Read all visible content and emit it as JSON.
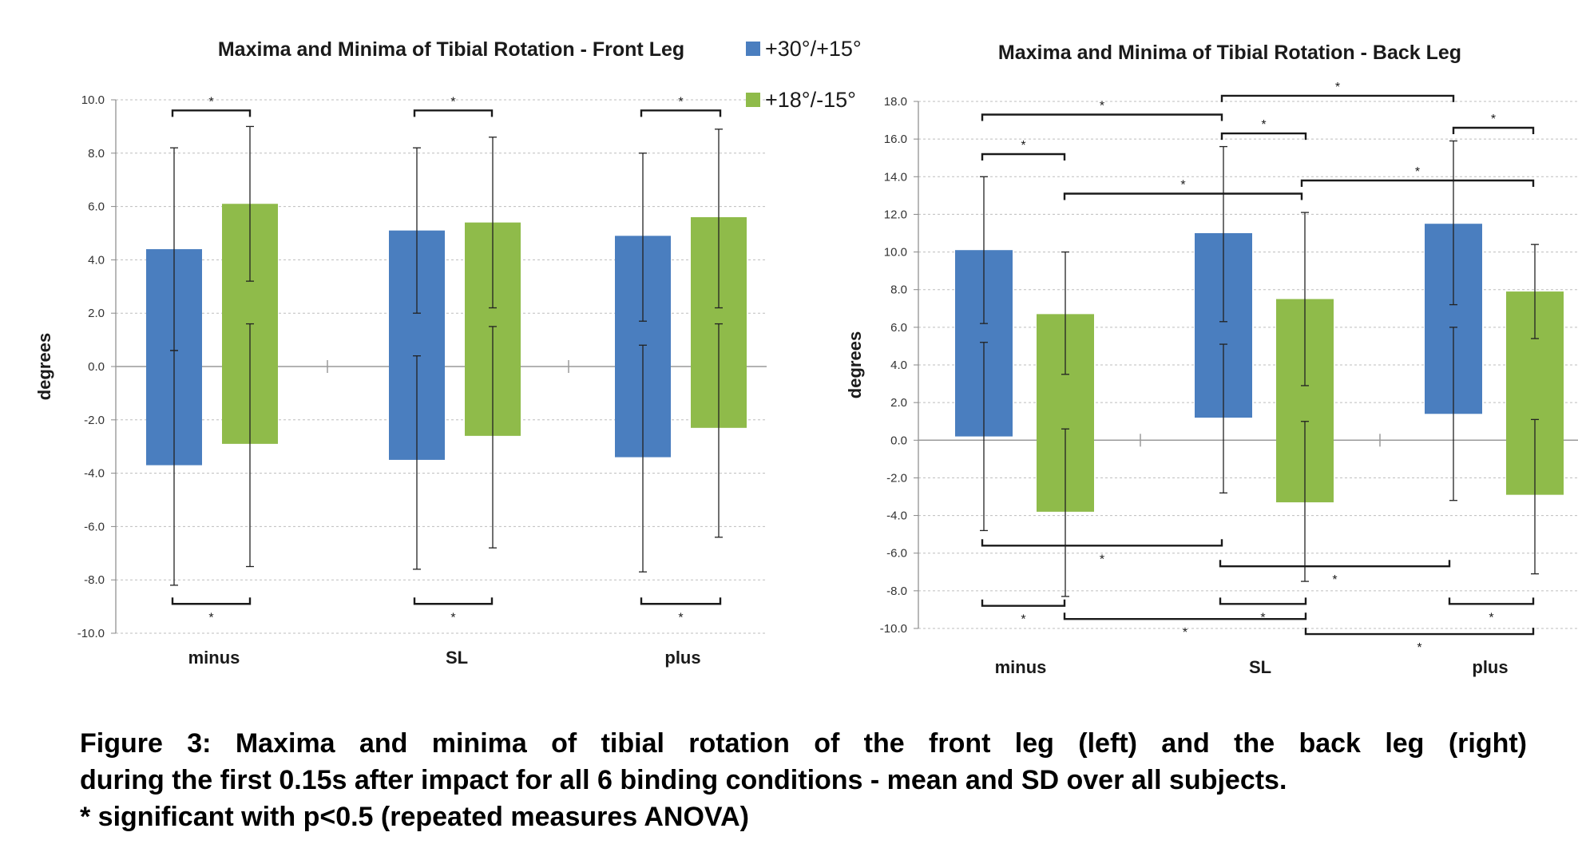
{
  "legend": [
    {
      "label": "+30°/+15°",
      "color": "#4a7ebf"
    },
    {
      "label": "+18°/-15°",
      "color": "#8fbb4a"
    }
  ],
  "chart_data": [
    {
      "type": "bar",
      "title": "Maxima and Minima of Tibial Rotation - Front Leg",
      "ylabel": "degrees",
      "categories": [
        "minus",
        "SL",
        "plus"
      ],
      "ylim": [
        -10,
        10
      ],
      "yticks": [
        "10.0",
        "8.0",
        "6.0",
        "4.0",
        "2.0",
        "0.0",
        "-2.0",
        "-4.0",
        "-6.0",
        "-8.0",
        "-10.0"
      ],
      "grid": true,
      "series": [
        {
          "name": "+30°/+15°",
          "max": [
            4.4,
            5.1,
            4.9
          ],
          "min": [
            -3.7,
            -3.5,
            -3.4
          ],
          "max_sd_low": [
            0.6,
            2.0,
            1.7
          ],
          "max_sd_high": [
            8.2,
            8.2,
            8.0
          ],
          "min_sd_low": [
            -8.2,
            -7.6,
            -7.7
          ],
          "min_sd_high": [
            0.6,
            0.4,
            0.8
          ]
        },
        {
          "name": "+18°/-15°",
          "max": [
            6.1,
            5.4,
            5.6
          ],
          "min": [
            -2.9,
            -2.6,
            -2.3
          ],
          "max_sd_low": [
            3.2,
            2.2,
            2.2
          ],
          "max_sd_high": [
            9.0,
            8.6,
            8.9
          ],
          "min_sd_low": [
            -7.5,
            -6.8,
            -6.4
          ],
          "min_sd_high": [
            1.6,
            1.5,
            1.6
          ]
        }
      ],
      "significance_marks": [
        "*",
        "*",
        "*",
        "*",
        "*",
        "*"
      ]
    },
    {
      "type": "bar",
      "title": "Maxima and Minima of Tibial Rotation - Back Leg",
      "ylabel": "degrees",
      "categories": [
        "minus",
        "SL",
        "plus"
      ],
      "ylim": [
        -10,
        18
      ],
      "yticks": [
        "18.0",
        "16.0",
        "14.0",
        "12.0",
        "10.0",
        "8.0",
        "6.0",
        "4.0",
        "2.0",
        "0.0",
        "-2.0",
        "-4.0",
        "-6.0",
        "-8.0",
        "-10.0"
      ],
      "grid": true,
      "series": [
        {
          "name": "+30°/+15°",
          "max": [
            10.1,
            11.0,
            11.5
          ],
          "min": [
            0.2,
            1.2,
            1.4
          ],
          "max_sd_low": [
            6.2,
            6.3,
            7.2
          ],
          "max_sd_high": [
            14.0,
            15.6,
            15.9
          ],
          "min_sd_low": [
            -4.8,
            -2.8,
            -3.2
          ],
          "min_sd_high": [
            5.2,
            5.1,
            6.0
          ]
        },
        {
          "name": "+18°/-15°",
          "max": [
            6.7,
            7.5,
            7.9
          ],
          "min": [
            -3.8,
            -3.3,
            -2.9
          ],
          "max_sd_low": [
            3.5,
            2.9,
            5.4
          ],
          "max_sd_high": [
            10.0,
            12.1,
            10.4
          ],
          "min_sd_low": [
            -8.3,
            -7.5,
            -7.1
          ],
          "min_sd_high": [
            0.6,
            1.0,
            1.1
          ]
        }
      ],
      "significance_marks": [
        "*",
        "*",
        "*",
        "*",
        "*",
        "*",
        "*",
        "*",
        "*",
        "*",
        "*",
        "*"
      ]
    }
  ],
  "caption": {
    "line1": "Figure 3: Maxima and minima of tibial rotation of the front leg (left) and the back leg (right)",
    "line2": "during the first 0.15s after impact for all 6 binding conditions - mean and SD over all subjects.",
    "line3": "* significant with p<0.5 (repeated measures ANOVA)"
  }
}
